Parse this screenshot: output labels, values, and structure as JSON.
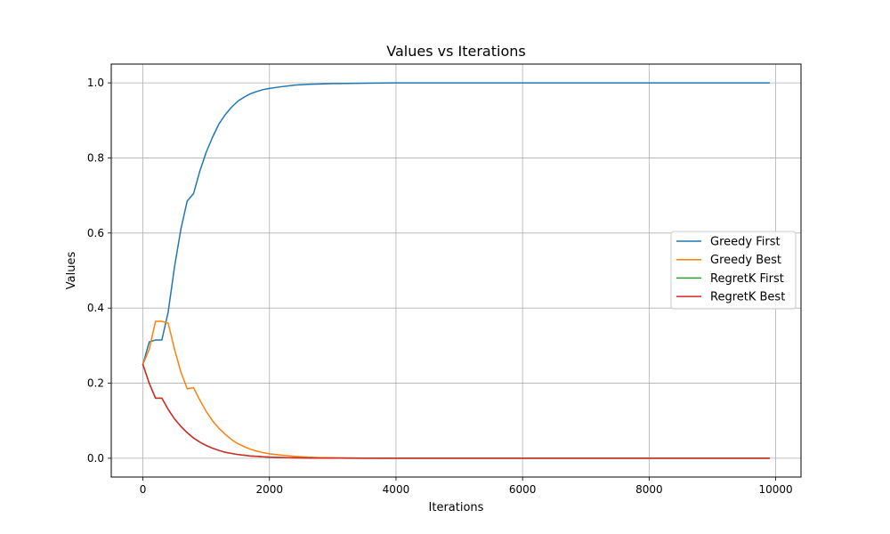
{
  "chart_data": {
    "type": "line",
    "title": "Values vs Iterations",
    "xlabel": "Iterations",
    "ylabel": "Values",
    "xlim": [
      -500,
      10400
    ],
    "ylim": [
      -0.05,
      1.05
    ],
    "xticks": [
      0,
      2000,
      4000,
      6000,
      8000,
      10000
    ],
    "yticks": [
      0.0,
      0.2,
      0.4,
      0.6,
      0.8,
      1.0
    ],
    "xtick_labels": [
      "0",
      "2000",
      "4000",
      "6000",
      "8000",
      "10000"
    ],
    "ytick_labels": [
      "0.0",
      "0.2",
      "0.4",
      "0.6",
      "0.8",
      "1.0"
    ],
    "grid": true,
    "legend_position": "center-right",
    "series": [
      {
        "name": "Greedy First",
        "color": "#1f77b4",
        "x": [
          0,
          100,
          200,
          300,
          400,
          500,
          600,
          700,
          800,
          900,
          1000,
          1100,
          1200,
          1300,
          1400,
          1500,
          1600,
          1700,
          1800,
          1900,
          2000,
          2200,
          2400,
          2600,
          2800,
          3000,
          3500,
          4000,
          5000,
          6000,
          7000,
          8000,
          9000,
          9900
        ],
        "y": [
          0.25,
          0.31,
          0.315,
          0.315,
          0.39,
          0.51,
          0.61,
          0.685,
          0.705,
          0.765,
          0.815,
          0.855,
          0.89,
          0.915,
          0.935,
          0.951,
          0.962,
          0.971,
          0.977,
          0.982,
          0.985,
          0.99,
          0.994,
          0.996,
          0.997,
          0.998,
          0.999,
          1.0,
          1.0,
          1.0,
          1.0,
          1.0,
          1.0,
          1.0
        ]
      },
      {
        "name": "Greedy Best",
        "color": "#ff7f0e",
        "x": [
          0,
          100,
          200,
          300,
          400,
          500,
          600,
          700,
          800,
          900,
          1000,
          1100,
          1200,
          1300,
          1400,
          1500,
          1600,
          1700,
          1800,
          1900,
          2000,
          2200,
          2400,
          2600,
          2800,
          3000,
          3500,
          4000,
          5000,
          6000,
          7000,
          8000,
          9000,
          9900
        ],
        "y": [
          0.25,
          0.29,
          0.365,
          0.365,
          0.36,
          0.29,
          0.23,
          0.185,
          0.188,
          0.155,
          0.125,
          0.1,
          0.08,
          0.064,
          0.05,
          0.039,
          0.031,
          0.024,
          0.019,
          0.015,
          0.012,
          0.008,
          0.005,
          0.003,
          0.002,
          0.0015,
          0.0005,
          0.0002,
          0.0,
          0.0,
          0.0,
          0.0,
          0.0,
          0.0
        ]
      },
      {
        "name": "RegretK First",
        "color": "#2ca02c",
        "x": [
          0,
          100,
          200,
          300,
          400,
          500,
          600,
          700,
          800,
          900,
          1000,
          1100,
          1200,
          1300,
          1400,
          1500,
          1600,
          1700,
          1800,
          1900,
          2000,
          2200,
          2400,
          2600,
          2800,
          3000,
          3500,
          4000,
          5000,
          6000,
          7000,
          8000,
          9000,
          9900
        ],
        "y": [
          0.25,
          0.2,
          0.16,
          0.16,
          0.13,
          0.105,
          0.085,
          0.068,
          0.054,
          0.043,
          0.034,
          0.027,
          0.021,
          0.016,
          0.013,
          0.01,
          0.008,
          0.006,
          0.005,
          0.004,
          0.003,
          0.002,
          0.0012,
          0.0008,
          0.0005,
          0.0003,
          0.0001,
          0.0,
          0.0,
          0.0,
          0.0,
          0.0,
          0.0,
          0.0
        ]
      },
      {
        "name": "RegretK Best",
        "color": "#d62728",
        "x": [
          0,
          100,
          200,
          300,
          400,
          500,
          600,
          700,
          800,
          900,
          1000,
          1100,
          1200,
          1300,
          1400,
          1500,
          1600,
          1700,
          1800,
          1900,
          2000,
          2200,
          2400,
          2600,
          2800,
          3000,
          3500,
          4000,
          5000,
          6000,
          7000,
          8000,
          9000,
          9900
        ],
        "y": [
          0.25,
          0.2,
          0.16,
          0.16,
          0.13,
          0.105,
          0.085,
          0.068,
          0.054,
          0.043,
          0.034,
          0.027,
          0.021,
          0.016,
          0.013,
          0.01,
          0.008,
          0.006,
          0.005,
          0.004,
          0.003,
          0.002,
          0.0012,
          0.0008,
          0.0005,
          0.0003,
          0.0001,
          0.0,
          0.0,
          0.0,
          0.0,
          0.0,
          0.0,
          0.0
        ]
      }
    ]
  }
}
